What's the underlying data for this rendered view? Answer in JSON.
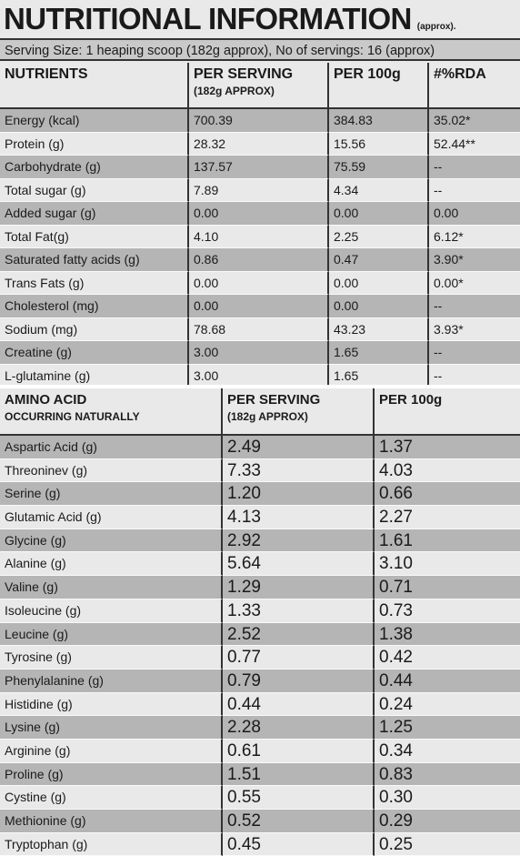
{
  "header": {
    "title": "NUTRITIONAL INFORMATION",
    "note": "(approx)."
  },
  "serving": "Serving Size: 1 heaping scoop (182g approx), No of servings: 16 (approx)",
  "table1": {
    "headers": [
      [
        "NUTRIENTS"
      ],
      [
        "PER SERVING",
        "(182g  APPROX)"
      ],
      [
        "PER 100g"
      ],
      [
        "#%RDA"
      ]
    ],
    "rows": [
      [
        "Energy (kcal)",
        "700.39",
        "384.83",
        "35.02*"
      ],
      [
        "Protein (g)",
        "28.32",
        "15.56",
        "52.44**"
      ],
      [
        "Carbohydrate (g)",
        "137.57",
        "75.59",
        "--"
      ],
      [
        "Total sugar (g)",
        "7.89",
        "4.34",
        "--"
      ],
      [
        "Added sugar (g)",
        "0.00",
        "0.00",
        "0.00"
      ],
      [
        "Total Fat(g)",
        "4.10",
        "2.25",
        "6.12*"
      ],
      [
        "Saturated fatty acids (g)",
        "0.86",
        "0.47",
        "3.90*"
      ],
      [
        "Trans Fats (g)",
        "0.00",
        "0.00",
        "0.00*"
      ],
      [
        "Cholesterol (mg)",
        "0.00",
        "0.00",
        "--"
      ],
      [
        "Sodium (mg)",
        "78.68",
        "43.23",
        "3.93*"
      ],
      [
        "Creatine (g)",
        "3.00",
        "1.65",
        "--"
      ],
      [
        "L-glutamine (g)",
        "3.00",
        "1.65",
        "--"
      ]
    ]
  },
  "table2": {
    "headers": [
      [
        "AMINO ACID",
        "OCCURRING NATURALLY"
      ],
      [
        "PER SERVING",
        "(182g  APPROX)"
      ],
      [
        "PER 100g"
      ]
    ],
    "rows": [
      [
        "Aspartic Acid (g)",
        "2.49",
        "1.37"
      ],
      [
        "Threoninev (g)",
        "7.33",
        "4.03"
      ],
      [
        "Serine (g)",
        "1.20",
        "0.66"
      ],
      [
        "Glutamic Acid (g)",
        "4.13",
        "2.27"
      ],
      [
        "Glycine (g)",
        "2.92",
        "1.61"
      ],
      [
        "Alanine (g)",
        "5.64",
        "3.10"
      ],
      [
        "Valine (g)",
        "1.29",
        "0.71"
      ],
      [
        "Isoleucine (g)",
        "1.33",
        "0.73"
      ],
      [
        "Leucine (g)",
        "2.52",
        "1.38"
      ],
      [
        "Tyrosine (g)",
        "0.77",
        "0.42"
      ],
      [
        "Phenylalanine (g)",
        "0.79",
        "0.44"
      ],
      [
        "Histidine (g)",
        "0.44",
        "0.24"
      ],
      [
        "Lysine (g)",
        "2.28",
        "1.25"
      ],
      [
        "Arginine (g)",
        "0.61",
        "0.34"
      ],
      [
        "Proline (g)",
        "1.51",
        "0.83"
      ],
      [
        "Cystine (g)",
        "0.55",
        "0.30"
      ],
      [
        "Methionine (g)",
        "0.52",
        "0.29"
      ],
      [
        "Tryptophan (g)",
        "0.45",
        "0.25"
      ]
    ]
  }
}
